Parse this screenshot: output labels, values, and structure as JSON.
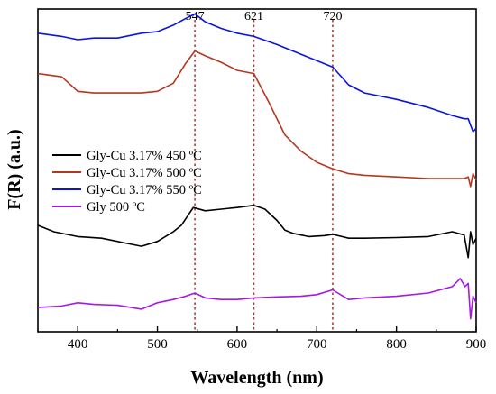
{
  "chart_data": {
    "type": "line",
    "title": "",
    "xlabel": "Wavelength (nm)",
    "ylabel": "F(R) (a.u.)",
    "xlim": [
      350,
      900
    ],
    "x_ticks": [
      400,
      500,
      600,
      700,
      800,
      900
    ],
    "y_ticks_labeled": false,
    "grid": false,
    "legend_position": "middle-left",
    "reference_lines": [
      {
        "x": 547,
        "label": "547",
        "style": "dotted",
        "color": "#b03a2e"
      },
      {
        "x": 621,
        "label": "621",
        "style": "dotted",
        "color": "#b03a2e"
      },
      {
        "x": 720,
        "label": "720",
        "style": "dotted",
        "color": "#b03a2e"
      }
    ],
    "series": [
      {
        "name": "Gly-Cu 3.17% 450 ºC",
        "color": "#000000",
        "x": [
          350,
          370,
          400,
          430,
          460,
          480,
          500,
          520,
          530,
          545,
          560,
          580,
          600,
          615,
          621,
          635,
          650,
          660,
          670,
          690,
          710,
          720,
          740,
          760,
          800,
          840,
          870,
          885,
          890,
          893,
          896,
          900
        ],
        "y": [
          0.33,
          0.31,
          0.295,
          0.29,
          0.275,
          0.265,
          0.28,
          0.31,
          0.33,
          0.385,
          0.375,
          0.38,
          0.385,
          0.39,
          0.392,
          0.38,
          0.345,
          0.315,
          0.305,
          0.295,
          0.298,
          0.302,
          0.29,
          0.29,
          0.292,
          0.295,
          0.31,
          0.3,
          0.23,
          0.31,
          0.27,
          0.29
        ]
      },
      {
        "name": "Gly-Cu 3.17% 500 ºC",
        "color": "#b5371f",
        "x": [
          350,
          380,
          400,
          420,
          450,
          480,
          500,
          520,
          535,
          547,
          560,
          580,
          600,
          621,
          640,
          660,
          680,
          700,
          720,
          740,
          760,
          800,
          840,
          870,
          885,
          890,
          893,
          896,
          900
        ],
        "y": [
          0.8,
          0.79,
          0.745,
          0.74,
          0.74,
          0.74,
          0.745,
          0.77,
          0.83,
          0.87,
          0.855,
          0.835,
          0.81,
          0.8,
          0.71,
          0.61,
          0.56,
          0.525,
          0.505,
          0.49,
          0.485,
          0.48,
          0.475,
          0.475,
          0.475,
          0.48,
          0.45,
          0.49,
          0.47
        ]
      },
      {
        "name": "Gly-Cu 3.17% 550 ºC",
        "color": "#0a14e0",
        "x": [
          350,
          380,
          400,
          420,
          450,
          480,
          500,
          520,
          535,
          547,
          560,
          580,
          600,
          621,
          650,
          680,
          700,
          720,
          740,
          760,
          800,
          840,
          870,
          885,
          890,
          893,
          896,
          900
        ],
        "y": [
          0.925,
          0.915,
          0.905,
          0.91,
          0.91,
          0.925,
          0.93,
          0.95,
          0.97,
          0.985,
          0.96,
          0.94,
          0.925,
          0.915,
          0.89,
          0.86,
          0.84,
          0.82,
          0.765,
          0.74,
          0.72,
          0.695,
          0.67,
          0.66,
          0.66,
          0.64,
          0.62,
          0.63
        ]
      },
      {
        "name": "Gly 500 ºC",
        "color": "#a31ae6",
        "x": [
          350,
          380,
          400,
          420,
          450,
          480,
          500,
          520,
          535,
          547,
          560,
          580,
          600,
          621,
          650,
          680,
          700,
          720,
          740,
          760,
          800,
          840,
          870,
          880,
          886,
          890,
          893,
          896,
          900
        ],
        "y": [
          0.075,
          0.08,
          0.09,
          0.085,
          0.082,
          0.07,
          0.09,
          0.1,
          0.11,
          0.12,
          0.105,
          0.1,
          0.1,
          0.105,
          0.108,
          0.11,
          0.115,
          0.13,
          0.1,
          0.105,
          0.11,
          0.12,
          0.14,
          0.165,
          0.14,
          0.15,
          0.04,
          0.11,
          0.09
        ]
      }
    ]
  }
}
